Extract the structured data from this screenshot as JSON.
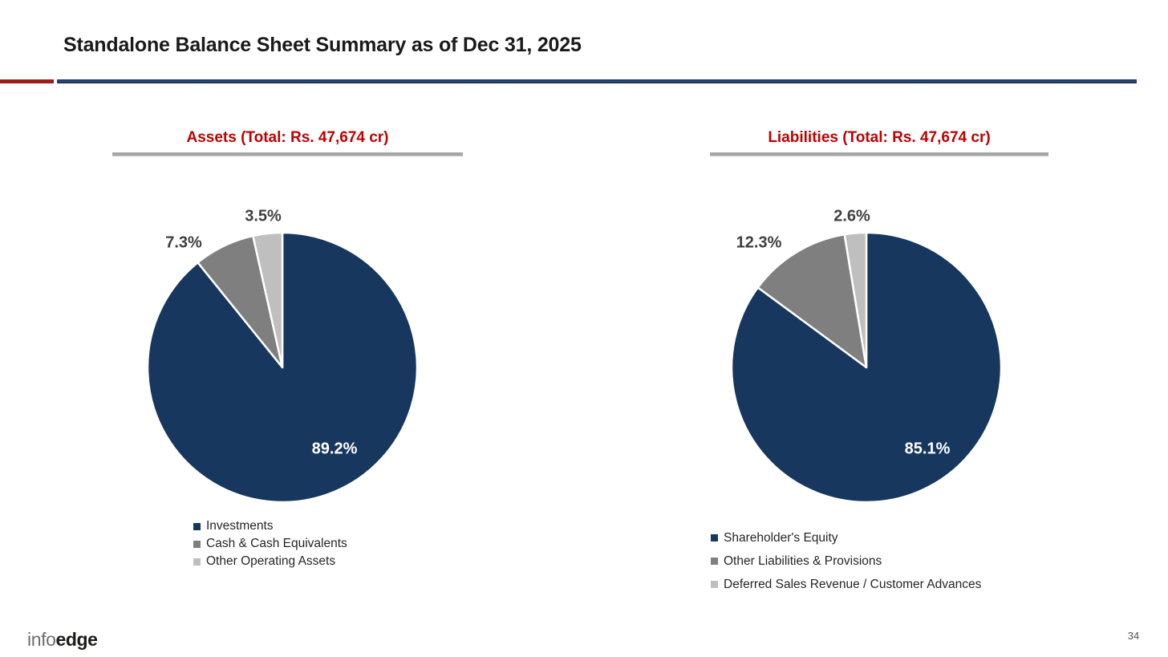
{
  "slide": {
    "title": "Standalone Balance Sheet Summary as of Dec 31, 2025",
    "page_number": "34",
    "logo_info": "info",
    "logo_edge": "edge"
  },
  "colors": {
    "accent_red": "#c00000",
    "divider_red": "#9e1b1b",
    "divider_navy": "#1f3864",
    "title_underline_gray": "#a6a6a6",
    "pie_navy": "#17375e",
    "pie_gray": "#7f7f7f",
    "pie_light_gray": "#bfbfbf"
  },
  "chart_data": [
    {
      "type": "pie",
      "title": "Assets (Total: Rs. 47,674 cr)",
      "total": "Rs. 47,674 cr",
      "labels": [
        "Investments",
        "Cash & Cash Equivalents",
        "Other Operating Assets"
      ],
      "values": [
        89.2,
        7.3,
        3.5
      ],
      "data_labels": [
        "89.2%",
        "7.3%",
        "3.5%"
      ],
      "colors": [
        "#17375e",
        "#7f7f7f",
        "#bfbfbf"
      ],
      "start_angle_deg": 0,
      "direction": "clockwise",
      "legend_position": "bottom"
    },
    {
      "type": "pie",
      "title": "Liabilities (Total: Rs. 47,674 cr)",
      "total": "Rs. 47,674 cr",
      "labels": [
        "Shareholder's Equity",
        "Other Liabilities & Provisions",
        "Deferred Sales Revenue / Customer Advances"
      ],
      "values": [
        85.1,
        12.3,
        2.6
      ],
      "data_labels": [
        "85.1%",
        "12.3%",
        "2.6%"
      ],
      "colors": [
        "#17375e",
        "#7f7f7f",
        "#bfbfbf"
      ],
      "start_angle_deg": 0,
      "direction": "clockwise",
      "legend_position": "bottom"
    }
  ]
}
